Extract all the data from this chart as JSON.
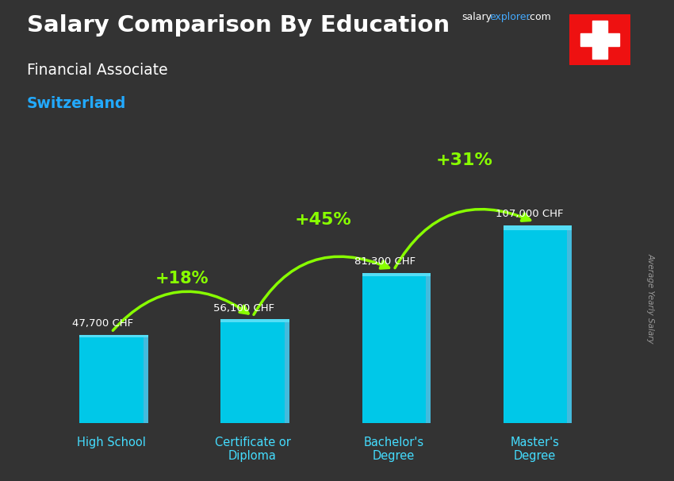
{
  "title": "Salary Comparison By Education",
  "subtitle": "Financial Associate",
  "country": "Switzerland",
  "ylabel": "Average Yearly Salary",
  "categories": [
    "High School",
    "Certificate or\nDiploma",
    "Bachelor's\nDegree",
    "Master's\nDegree"
  ],
  "values": [
    47700,
    56100,
    81300,
    107000
  ],
  "value_labels": [
    "47,700 CHF",
    "56,100 CHF",
    "81,300 CHF",
    "107,000 CHF"
  ],
  "pct_changes": [
    "+18%",
    "+45%",
    "+31%"
  ],
  "bar_color_main": "#00c8e8",
  "bar_color_light": "#55ddf5",
  "bar_color_dark": "#0099bb",
  "bar_color_side": "#44bbdd",
  "bg_color": "#333333",
  "title_color": "#ffffff",
  "subtitle_color": "#ffffff",
  "country_color": "#22aaff",
  "value_label_color": "#ffffff",
  "pct_color": "#88ff00",
  "arrow_color": "#66ee00",
  "tick_color": "#44ddff",
  "bar_width": 0.45,
  "ylim": [
    0,
    135000
  ],
  "flag_red": "#ee1111",
  "flag_white": "#ffffff",
  "site_salary_color": "#ffffff",
  "site_explorer_color": "#44aaff",
  "site_com_color": "#ffffff"
}
